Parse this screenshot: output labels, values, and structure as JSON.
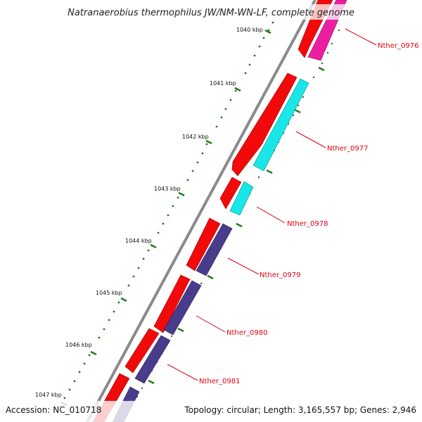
{
  "title": "Natranaerobius thermophilus JW/NM-WN-LF, complete genome",
  "footer": {
    "accession": "Accession: NC_010718",
    "summary": "Topology: circular; Length: 3,165,557 bp; Genes: 2,946"
  },
  "kbp_labels": [
    "1040 kbp",
    "1041 kbp",
    "1042 kbp",
    "1043 kbp",
    "1044 kbp",
    "1045 kbp",
    "1046 kbp",
    "1047 kbp"
  ],
  "genes": [
    {
      "label": "Nther_0976",
      "color": "#ec1fa0"
    },
    {
      "label": "Nther_0977",
      "color": "#19e6e6"
    },
    {
      "label": "Nther_0978",
      "color": "#19e6e6"
    },
    {
      "label": "Nther_0979",
      "color": "#4a3c8c"
    },
    {
      "label": "Nther_0980",
      "color": "#4a3c8c"
    },
    {
      "label": "Nther_0981",
      "color": "#4a3c8c"
    }
  ],
  "colors": {
    "cds_strand": "#f20a0a",
    "backbone": "#8a8a8a",
    "tick": "#1e7a1e",
    "label": "#e0000f"
  }
}
